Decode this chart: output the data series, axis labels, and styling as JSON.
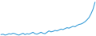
{
  "values": [
    10,
    11,
    9,
    10,
    12,
    11,
    13,
    12,
    10,
    9,
    11,
    13,
    10,
    12,
    11,
    13,
    15,
    12,
    11,
    13,
    15,
    13,
    12,
    15,
    18,
    16,
    17,
    19,
    18,
    20,
    22,
    21,
    23,
    25,
    24,
    26,
    28,
    27,
    30,
    32,
    33,
    35,
    38,
    42,
    47,
    55,
    65,
    80
  ],
  "line_color": "#3d9fd8",
  "bg_color": "#ffffff",
  "linewidth": 0.8
}
